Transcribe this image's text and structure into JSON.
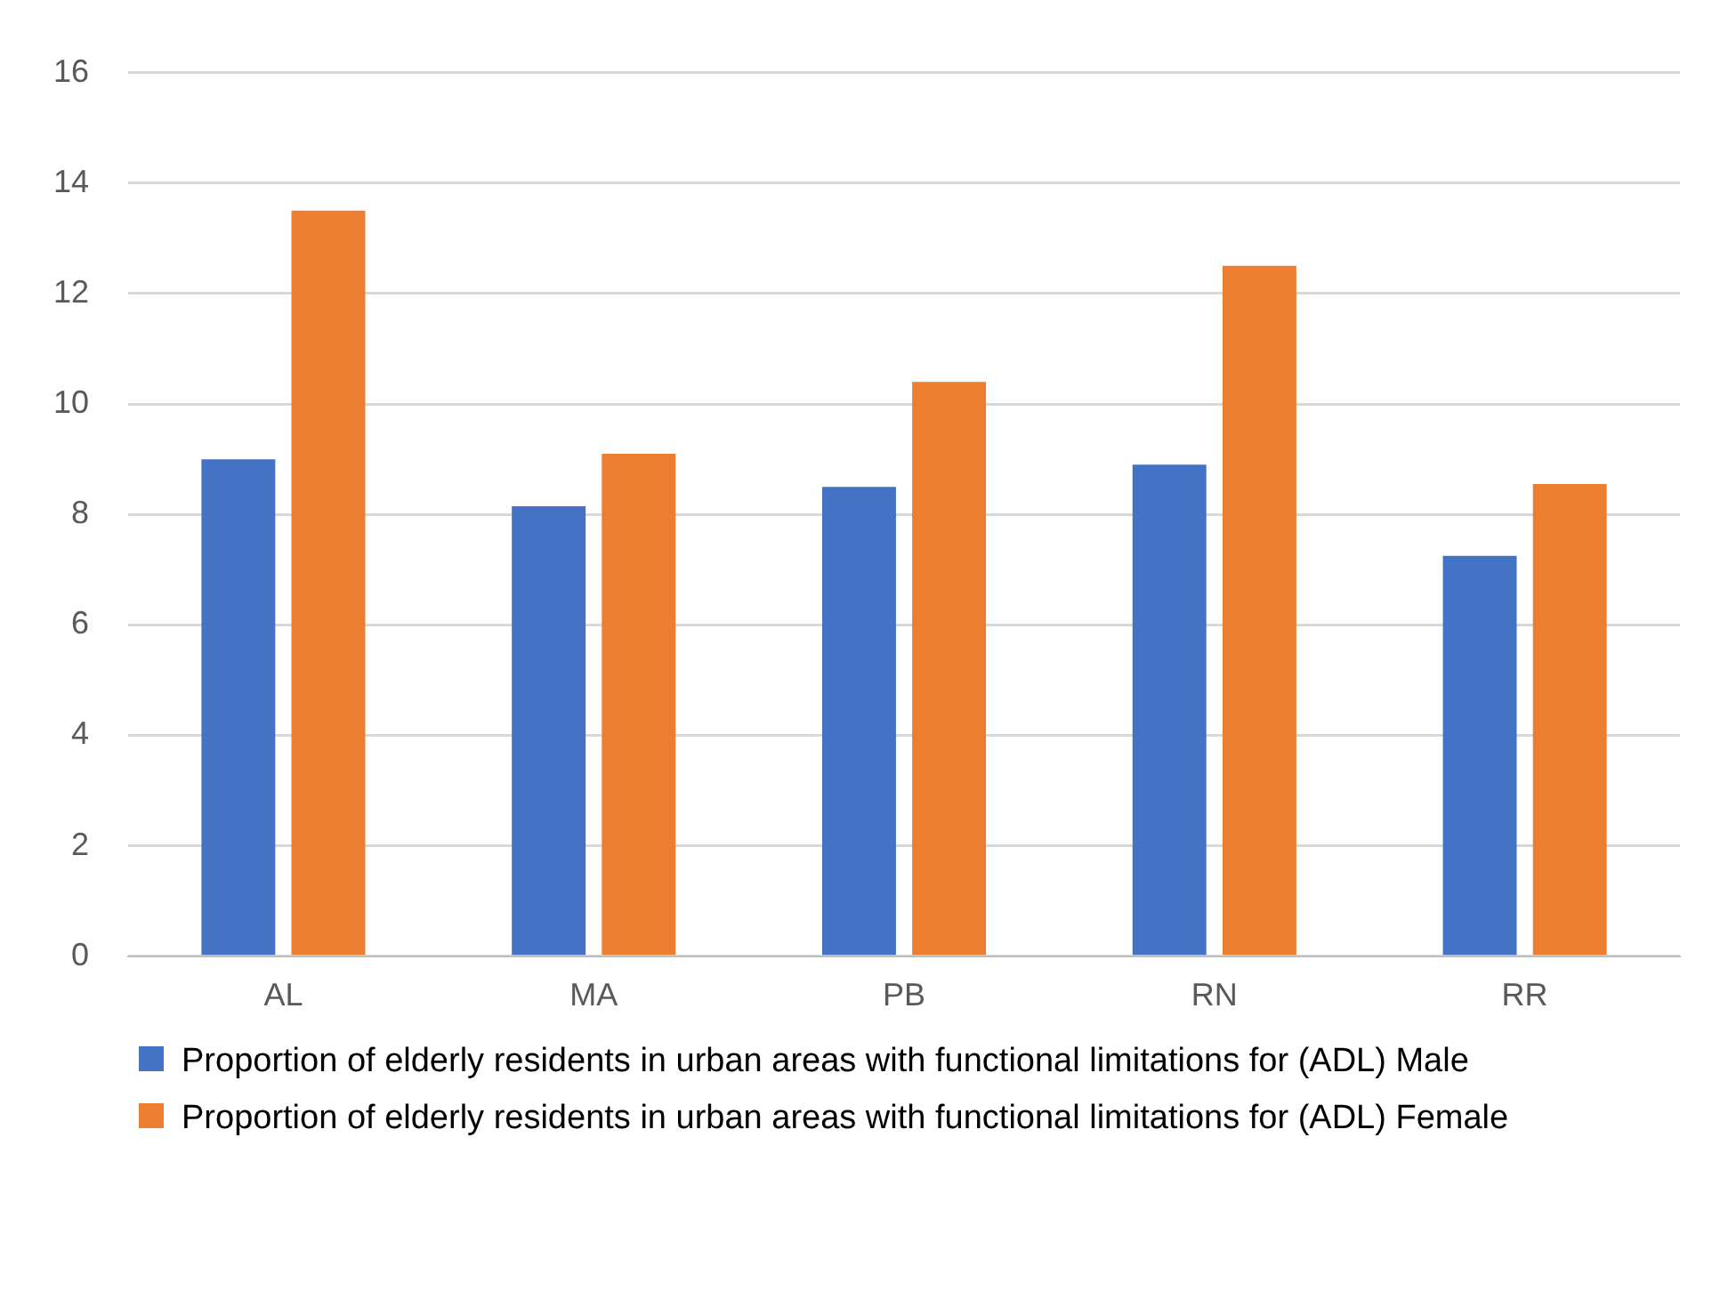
{
  "chart_data": {
    "type": "bar",
    "categories": [
      "AL",
      "MA",
      "PB",
      "RN",
      "RR"
    ],
    "series": [
      {
        "name": "Proportion of elderly residents in urban areas with functional limitations for (ADL) Male",
        "color": "#4472c4",
        "values": [
          9.0,
          8.15,
          8.5,
          8.9,
          7.25
        ]
      },
      {
        "name": "Proportion of elderly residents in urban areas with functional limitations for (ADL) Female",
        "color": "#ed7d31",
        "values": [
          13.5,
          9.1,
          10.4,
          12.5,
          8.55
        ]
      }
    ],
    "ylim": [
      0,
      16
    ],
    "yticks": [
      0,
      2,
      4,
      6,
      8,
      10,
      12,
      14,
      16
    ],
    "grid": "y",
    "legend": "bottom"
  }
}
